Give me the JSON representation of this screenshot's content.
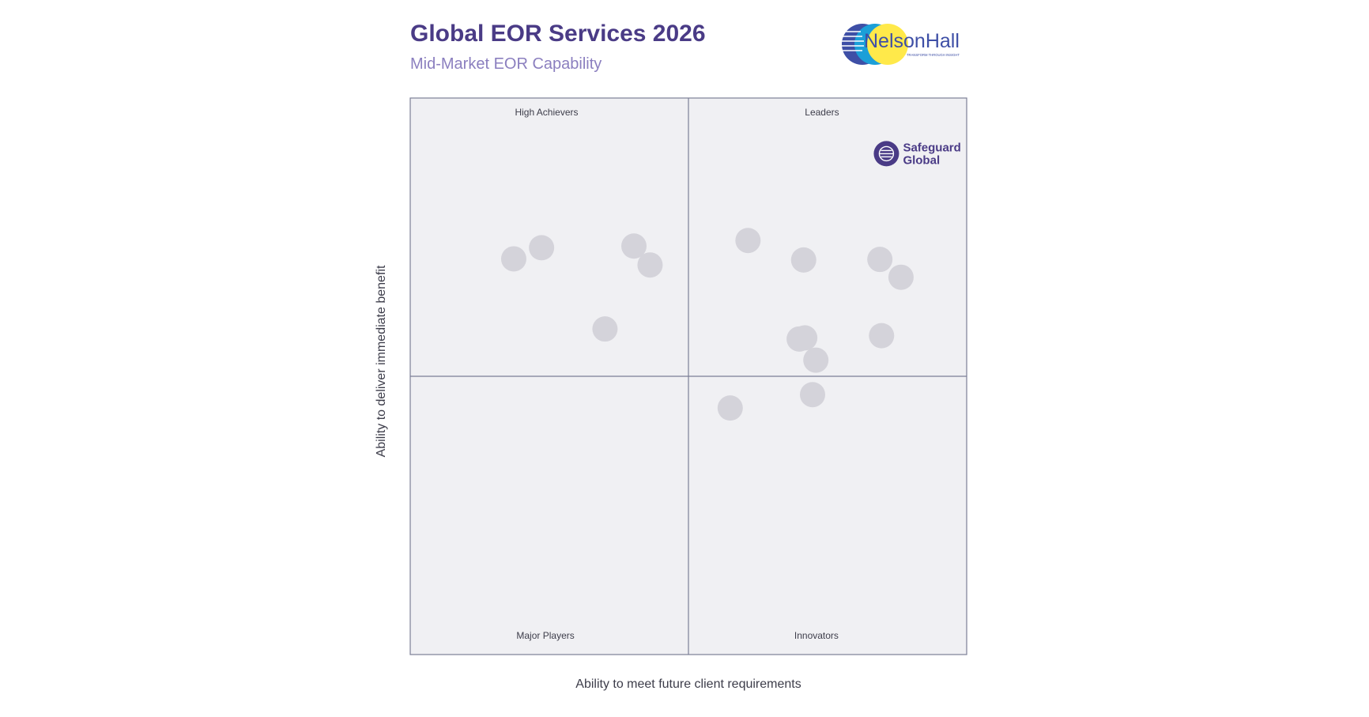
{
  "header": {
    "title": "Global EOR Services 2026",
    "subtitle": "Mid-Market EOR Capability"
  },
  "logos": {
    "publisher": {
      "text": "NelsonHall",
      "tagline": "TRANSFORM THROUGH INSIGHT",
      "icon": "nelsonhall-circles-logo"
    },
    "highlight": {
      "line1": "Safeguard",
      "line2": "Global",
      "icon": "safeguard-global-logo"
    }
  },
  "chart_data": {
    "type": "scatter",
    "xlabel": "Ability to meet future client requirements",
    "ylabel": "Ability to deliver immediate benefit",
    "xlim": [
      0,
      100
    ],
    "ylim": [
      0,
      100
    ],
    "quadrant_split": {
      "x": 50,
      "y": 50
    },
    "quadrants": {
      "top_left": "High Achievers",
      "top_right": "Leaders",
      "bottom_left": "Major Players",
      "bottom_right": "Innovators"
    },
    "grid": false,
    "legend": "none",
    "series": [
      {
        "points": [
          {
            "x": 18.6,
            "y": 71.1
          },
          {
            "x": 23.6,
            "y": 73.1
          },
          {
            "x": 40.2,
            "y": 73.4
          },
          {
            "x": 43.1,
            "y": 70.0
          },
          {
            "x": 35.0,
            "y": 58.5
          },
          {
            "x": 60.7,
            "y": 74.4
          },
          {
            "x": 70.7,
            "y": 70.9
          },
          {
            "x": 84.4,
            "y": 71.0
          },
          {
            "x": 88.2,
            "y": 67.8
          },
          {
            "x": 69.9,
            "y": 56.7
          },
          {
            "x": 70.9,
            "y": 56.9
          },
          {
            "x": 84.7,
            "y": 57.3
          },
          {
            "x": 72.9,
            "y": 52.9
          },
          {
            "x": 72.3,
            "y": 46.7
          },
          {
            "x": 57.5,
            "y": 44.3
          }
        ]
      }
    ],
    "highlight": {
      "label": "Safeguard Global",
      "x": 86.0,
      "y": 90.0
    },
    "colors": {
      "plot_background": "#f0f0f3",
      "frame": "#7b7e96",
      "point": "#d4d3da",
      "title": "#4a3b86",
      "subtitle": "#8b7fbf",
      "highlight": "#4a3b86",
      "quadrant_label": "#3d3d4a"
    }
  }
}
